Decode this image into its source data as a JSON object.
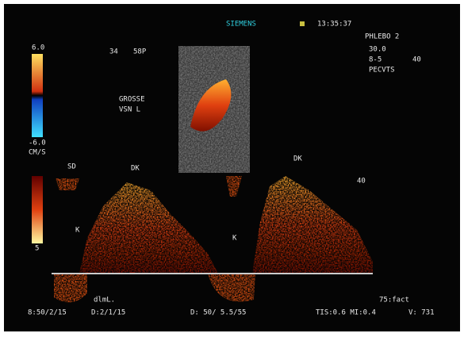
{
  "header": {
    "brand": "SIEMENS",
    "time": "13:35:37",
    "preset": "PHLEBO 2",
    "params": [
      "30.0",
      "8-5",
      "PECVTS",
      "40"
    ]
  },
  "color_scale": {
    "top": "6.0",
    "bottom": "-6.0",
    "unit": "CM/S"
  },
  "image_info": {
    "depth": "34",
    "mode": "58P"
  },
  "annotation": {
    "line1": "GROSSE",
    "line2": "VSN L"
  },
  "doppler_labels": {
    "sd": "SD",
    "dk1": "DK",
    "dk2": "DK",
    "k1": "K",
    "k2": "K",
    "scale_bottom": "5",
    "right_scale": "40"
  },
  "footer": {
    "sample": "8:50/2/15",
    "gain": "D:2/1/15",
    "doppler": "D: 50/ 5.5/55",
    "index": "TIS:0.6 MI:0.4",
    "velocity": "V: 731",
    "factor": "75:fact",
    "note": "dlmL."
  }
}
